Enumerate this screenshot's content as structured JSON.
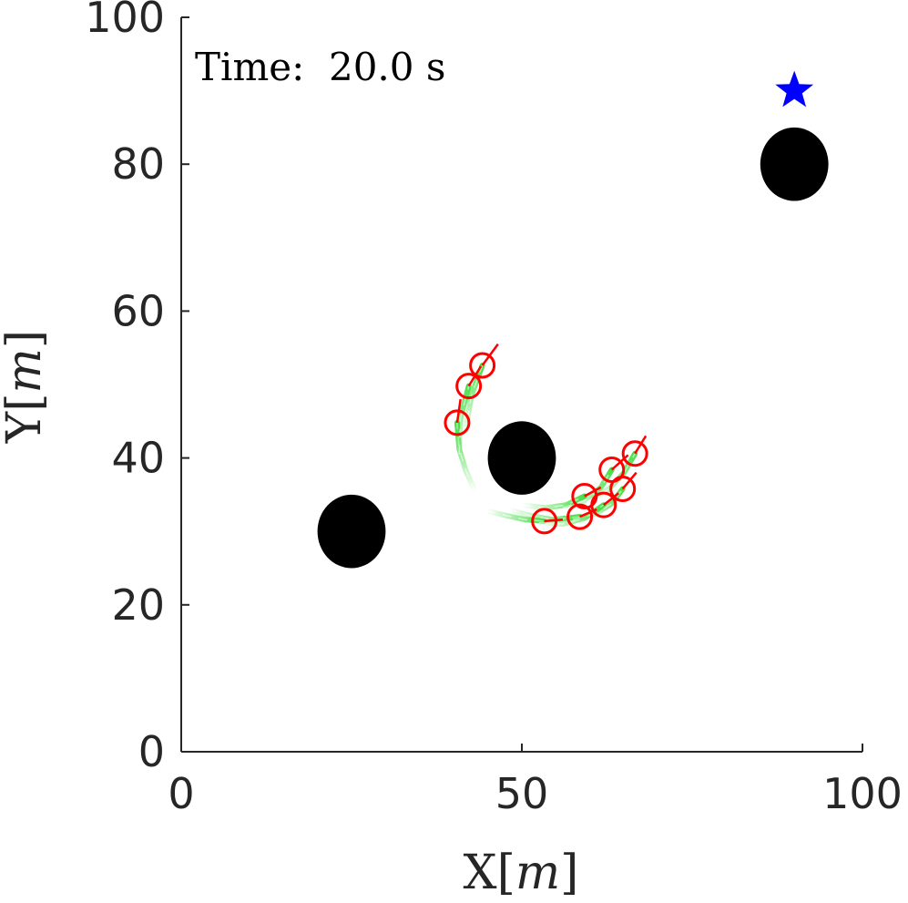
{
  "chart_data": {
    "type": "scatter",
    "xlim": [
      0,
      100
    ],
    "ylim": [
      0,
      100
    ],
    "x_ticks": [
      0,
      50,
      100
    ],
    "y_ticks": [
      0,
      20,
      40,
      60,
      80,
      100
    ],
    "x_ticks_text": [
      "0",
      "50",
      "100"
    ],
    "y_ticks_text": [
      "0",
      "20",
      "40",
      "60",
      "80",
      "100"
    ],
    "xlabel": {
      "main": "X",
      "open": "[",
      "unit": "m",
      "close": "]"
    },
    "ylabel": {
      "main": "Y",
      "open": "[",
      "unit": "m",
      "close": "]"
    },
    "annotation": "Time:  20.0 s",
    "grid": false,
    "colors": {
      "obstacle": "#000000",
      "goal": "#0000ff",
      "agent": "#ff0000",
      "trail": "#3ddc3d",
      "axis": "#262626"
    },
    "goal": {
      "x": 90,
      "y": 90,
      "marker": "star"
    },
    "obstacles": [
      {
        "x": 25,
        "y": 30,
        "rx": 5,
        "ry": 5
      },
      {
        "x": 50,
        "y": 40,
        "rx": 5,
        "ry": 5
      },
      {
        "x": 90,
        "y": 80,
        "rx": 5,
        "ry": 5
      }
    ],
    "agents": [
      {
        "x": 40.5,
        "y": 44.8,
        "hx": 41.0,
        "hy": 48.0
      },
      {
        "x": 42.2,
        "y": 49.8,
        "hx": 44.0,
        "hy": 52.5
      },
      {
        "x": 44.2,
        "y": 52.6,
        "hx": 46.5,
        "hy": 55.5
      },
      {
        "x": 53.3,
        "y": 31.4,
        "hx": 56.0,
        "hy": 31.6
      },
      {
        "x": 58.5,
        "y": 32.0,
        "hx": 61.0,
        "hy": 33.0
      },
      {
        "x": 59.2,
        "y": 34.8,
        "hx": 61.6,
        "hy": 36.0
      },
      {
        "x": 62.0,
        "y": 33.6,
        "hx": 64.2,
        "hy": 35.2
      },
      {
        "x": 63.2,
        "y": 38.4,
        "hx": 65.6,
        "hy": 40.4
      },
      {
        "x": 64.8,
        "y": 35.8,
        "hx": 66.8,
        "hy": 38.0
      },
      {
        "x": 66.6,
        "y": 40.6,
        "hx": 68.2,
        "hy": 43.0
      }
    ],
    "trails": [
      [
        [
          43.2,
          35.4
        ],
        [
          41.8,
          38.2
        ],
        [
          40.8,
          41.2
        ],
        [
          40.5,
          44.8
        ]
      ],
      [
        [
          40.8,
          40.5
        ],
        [
          41.0,
          45.5
        ],
        [
          42.2,
          49.8
        ]
      ],
      [
        [
          41.6,
          43.0
        ],
        [
          42.6,
          48.5
        ],
        [
          44.2,
          52.6
        ]
      ],
      [
        [
          44.8,
          32.8
        ],
        [
          47.5,
          32.2
        ],
        [
          50.5,
          31.6
        ],
        [
          53.3,
          31.4
        ]
      ],
      [
        [
          48.0,
          33.0
        ],
        [
          51.0,
          32.2
        ],
        [
          54.5,
          31.6
        ],
        [
          58.5,
          32.0
        ]
      ],
      [
        [
          50.0,
          33.6
        ],
        [
          53.5,
          33.2
        ],
        [
          56.5,
          33.6
        ],
        [
          59.2,
          34.8
        ]
      ],
      [
        [
          52.5,
          31.2
        ],
        [
          56.0,
          31.0
        ],
        [
          59.2,
          31.8
        ],
        [
          62.0,
          33.6
        ]
      ],
      [
        [
          56.0,
          33.2
        ],
        [
          59.2,
          34.2
        ],
        [
          61.6,
          36.0
        ],
        [
          63.2,
          38.4
        ]
      ],
      [
        [
          57.5,
          31.6
        ],
        [
          60.8,
          32.4
        ],
        [
          63.2,
          33.8
        ],
        [
          64.8,
          35.8
        ]
      ],
      [
        [
          59.5,
          34.0
        ],
        [
          62.8,
          35.8
        ],
        [
          65.0,
          38.0
        ],
        [
          66.6,
          40.6
        ]
      ]
    ]
  }
}
